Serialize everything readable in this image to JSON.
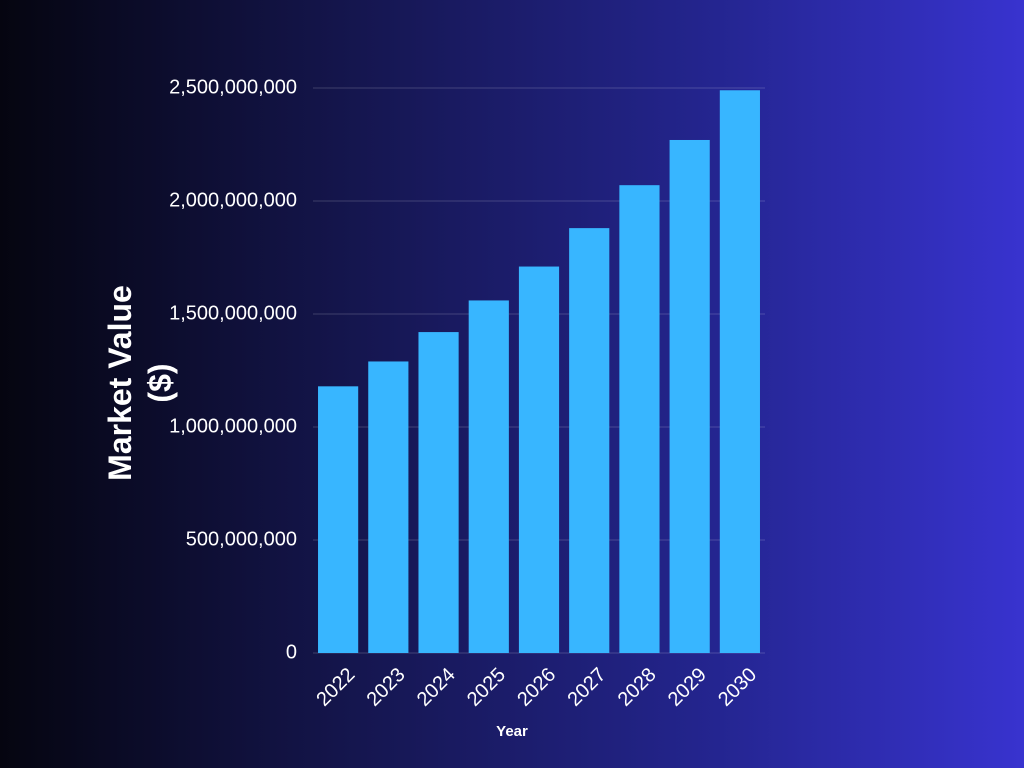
{
  "chart_data": {
    "type": "bar",
    "y_label": "Market Value ($)",
    "x_label": "Year",
    "categories": [
      "2022",
      "2023",
      "2024",
      "2025",
      "2026",
      "2027",
      "2028",
      "2029",
      "2030"
    ],
    "values": [
      1180000000,
      1290000000,
      1420000000,
      1560000000,
      1710000000,
      1880000000,
      2070000000,
      2270000000,
      2490000000
    ],
    "color": "#38b6ff",
    "ylim": [
      0,
      2500000000
    ],
    "yticks": [
      0,
      {
        "value": 500000000,
        "label": "500,000,000"
      },
      {
        "value": 1000000000,
        "label": "1,000,000,000"
      },
      {
        "value": 1500000000,
        "label": "1,500,000,000"
      },
      {
        "value": 2000000000,
        "label": "2,000,000,000"
      },
      {
        "value": 2500000000,
        "label": "2,500,000,000"
      }
    ],
    "grid": true
  }
}
